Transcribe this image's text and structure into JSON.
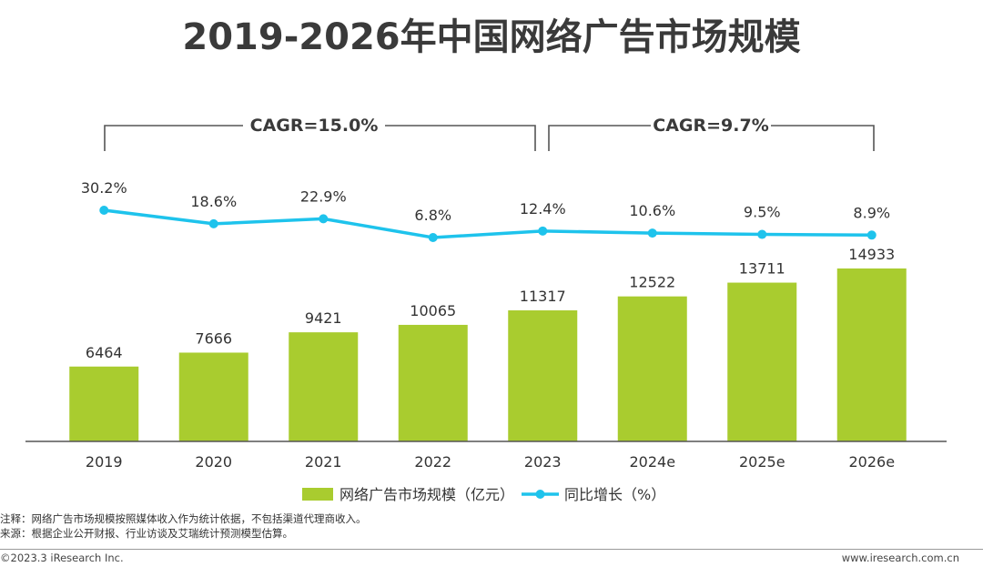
{
  "chart_data": {
    "title": "2019-2026年中国网络广告市场规模",
    "type": "bar",
    "categories": [
      "2019",
      "2020",
      "2021",
      "2022",
      "2023",
      "2024e",
      "2025e",
      "2026e"
    ],
    "series": [
      {
        "name": "网络广告市场规模（亿元）",
        "type": "bar",
        "values": [
          6464,
          7666,
          9421,
          10065,
          11317,
          12522,
          13711,
          14933
        ],
        "labels": [
          "6464",
          "7666",
          "9421",
          "10065",
          "11317",
          "12522",
          "13711",
          "14933"
        ],
        "color": "#a9cc2f"
      },
      {
        "name": "同比增长（%）",
        "type": "line",
        "values": [
          30.2,
          18.6,
          22.9,
          6.8,
          12.4,
          10.6,
          9.5,
          8.9
        ],
        "labels": [
          "30.2%",
          "18.6%",
          "22.9%",
          "6.8%",
          "12.4%",
          "10.6%",
          "9.5%",
          "8.9%"
        ],
        "color": "#1ec3ec"
      }
    ],
    "annotations": [
      {
        "text": "CAGR=15.0%",
        "from": "2019",
        "to": "2023"
      },
      {
        "text": "CAGR=9.7%",
        "from": "2023",
        "to": "2026e"
      }
    ],
    "legend_position": "bottom"
  },
  "notes": {
    "note": "注释：网络广告市场规模按照媒体收入作为统计依据，不包括渠道代理商收入。",
    "source": "来源：根据企业公开财报、行业访谈及艾瑞统计预测模型估算。"
  },
  "footer": {
    "copyright": "©2023.3 iResearch Inc.",
    "website": "www.iresearch.com.cn"
  }
}
